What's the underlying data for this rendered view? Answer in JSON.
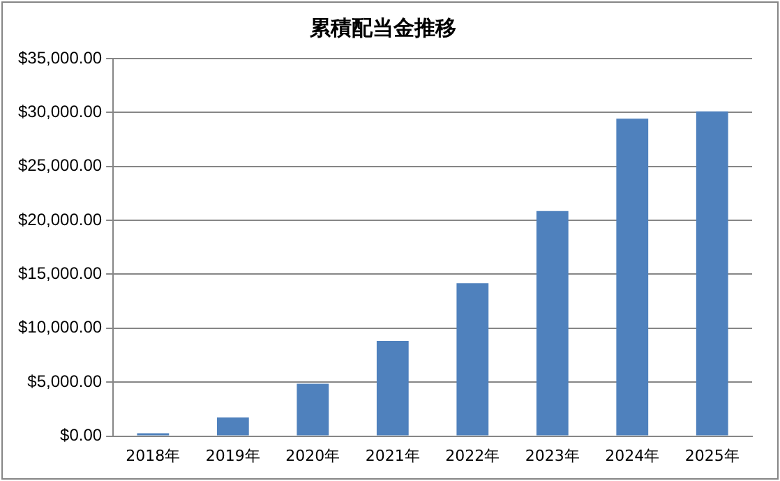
{
  "chart_data": {
    "type": "bar",
    "title": "累積配当金推移",
    "categories": [
      "2018年",
      "2019年",
      "2020年",
      "2021年",
      "2022年",
      "2023年",
      "2024年",
      "2025年"
    ],
    "values": [
      270,
      1740,
      4860,
      8830,
      14180,
      20870,
      29430,
      30100
    ],
    "color": "#4f81bd",
    "ylim": [
      0,
      35000
    ],
    "yticks": [
      {
        "value": 0,
        "label": "$0.00"
      },
      {
        "value": 5000,
        "label": "$5,000.00"
      },
      {
        "value": 10000,
        "label": "$10,000.00"
      },
      {
        "value": 15000,
        "label": "$15,000.00"
      },
      {
        "value": 20000,
        "label": "$20,000.00"
      },
      {
        "value": 25000,
        "label": "$25,000.00"
      },
      {
        "value": 30000,
        "label": "$30,000.00"
      },
      {
        "value": 35000,
        "label": "$35,000.00"
      }
    ],
    "grid": "y",
    "legend": false
  }
}
